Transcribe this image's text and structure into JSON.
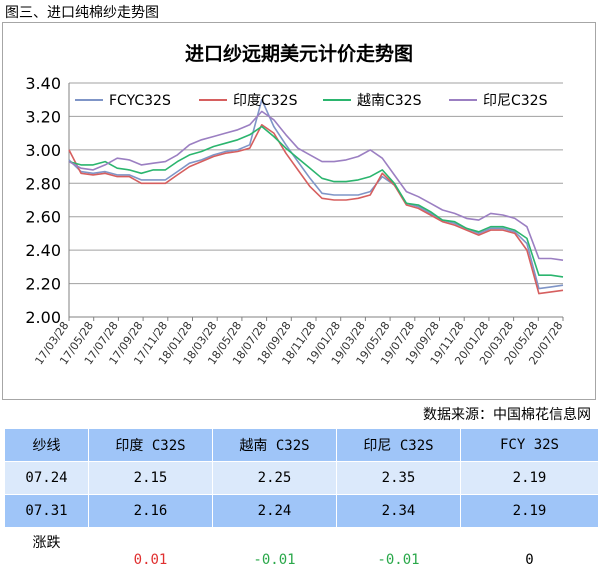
{
  "figure_caption": "图三、进口纯棉纱走势图",
  "source": "数据来源：中国棉花信息网",
  "chart_data": {
    "type": "line",
    "title": "进口纱远期美元计价走势图",
    "xlabel": "",
    "ylabel": "",
    "ylim": [
      2.0,
      3.4
    ],
    "yticks": [
      "2.00",
      "2.20",
      "2.40",
      "2.60",
      "2.80",
      "3.00",
      "3.20",
      "3.40"
    ],
    "xtick_labels": [
      "17/03/28",
      "17/05/28",
      "17/07/28",
      "17/09/28",
      "17/11/28",
      "18/01/28",
      "18/03/28",
      "18/05/28",
      "18/07/28",
      "18/09/28",
      "18/11/28",
      "19/01/28",
      "19/03/28",
      "19/05/28",
      "19/07/28",
      "19/09/28",
      "19/11/28",
      "20/01/28",
      "20/03/28",
      "20/05/28",
      "20/07/28"
    ],
    "grid": "horizontal",
    "legend": "top",
    "x_index": [
      0,
      1,
      2,
      3,
      4,
      5,
      6,
      7,
      8,
      9,
      10,
      11,
      12,
      13,
      14,
      15,
      16,
      17,
      18,
      19,
      20,
      21,
      22,
      23,
      24,
      25,
      26,
      27,
      28,
      29,
      30,
      31,
      32,
      33,
      34,
      35,
      36,
      37,
      38,
      39,
      40,
      41
    ],
    "series": [
      {
        "name": "FCYC32S",
        "color": "#7f95c7",
        "values": [
          2.94,
          2.87,
          2.86,
          2.87,
          2.85,
          2.85,
          2.82,
          2.82,
          2.82,
          2.87,
          2.92,
          2.94,
          2.97,
          2.99,
          3.0,
          3.03,
          3.3,
          3.14,
          3.03,
          2.93,
          2.83,
          2.74,
          2.73,
          2.73,
          2.73,
          2.75,
          2.84,
          2.79,
          2.68,
          2.66,
          2.62,
          2.58,
          2.56,
          2.53,
          2.5,
          2.53,
          2.53,
          2.51,
          2.44,
          2.17,
          2.18,
          2.19
        ]
      },
      {
        "name": "印度C32S",
        "color": "#d65f5f",
        "values": [
          3.0,
          2.86,
          2.85,
          2.86,
          2.84,
          2.84,
          2.8,
          2.8,
          2.8,
          2.85,
          2.9,
          2.93,
          2.96,
          2.98,
          2.99,
          3.01,
          3.15,
          3.1,
          2.98,
          2.88,
          2.78,
          2.71,
          2.7,
          2.7,
          2.71,
          2.73,
          2.86,
          2.79,
          2.67,
          2.65,
          2.61,
          2.57,
          2.55,
          2.52,
          2.49,
          2.52,
          2.52,
          2.5,
          2.4,
          2.14,
          2.15,
          2.16
        ]
      },
      {
        "name": "越南C32S",
        "color": "#2bb56e",
        "values": [
          2.93,
          2.91,
          2.91,
          2.93,
          2.89,
          2.88,
          2.86,
          2.88,
          2.88,
          2.93,
          2.97,
          2.99,
          3.02,
          3.04,
          3.06,
          3.09,
          3.14,
          3.08,
          3.01,
          2.95,
          2.89,
          2.83,
          2.81,
          2.81,
          2.82,
          2.84,
          2.88,
          2.8,
          2.68,
          2.67,
          2.63,
          2.58,
          2.57,
          2.53,
          2.51,
          2.54,
          2.54,
          2.52,
          2.47,
          2.25,
          2.25,
          2.24
        ]
      },
      {
        "name": "印尼C32S",
        "color": "#9b7fc2",
        "values": [
          2.93,
          2.89,
          2.88,
          2.91,
          2.95,
          2.94,
          2.91,
          2.92,
          2.93,
          2.97,
          3.03,
          3.06,
          3.08,
          3.1,
          3.12,
          3.15,
          3.23,
          3.18,
          3.09,
          3.01,
          2.97,
          2.93,
          2.93,
          2.94,
          2.96,
          3.0,
          2.95,
          2.85,
          2.75,
          2.72,
          2.68,
          2.64,
          2.62,
          2.59,
          2.58,
          2.62,
          2.61,
          2.59,
          2.54,
          2.35,
          2.35,
          2.34
        ]
      }
    ]
  },
  "table": {
    "headers": [
      "纱线",
      "印度 C32S",
      "越南 C32S",
      "印尼 C32S",
      "FCY 32S"
    ],
    "rows": [
      [
        "07.24",
        "2.15",
        "2.25",
        "2.35",
        "2.19"
      ],
      [
        "07.31",
        "2.16",
        "2.24",
        "2.34",
        "2.19"
      ]
    ],
    "change_label": "涨跌",
    "changes": [
      {
        "text": "0.01",
        "dir": "up",
        "color": "#e03030"
      },
      {
        "text": "-0.01",
        "dir": "down",
        "color": "#2aa84a"
      },
      {
        "text": "-0.01",
        "dir": "down",
        "color": "#2aa84a"
      },
      {
        "text": "0",
        "dir": "flat",
        "color": "#000000"
      }
    ]
  }
}
